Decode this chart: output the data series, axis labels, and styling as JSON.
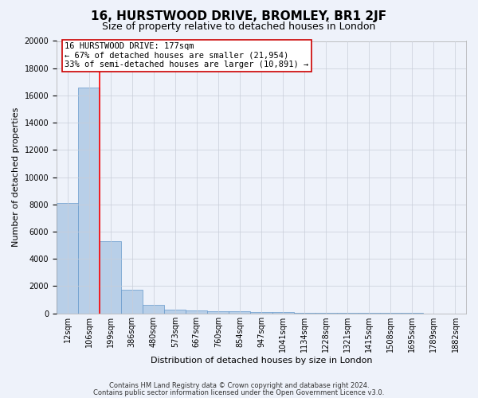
{
  "title": "16, HURSTWOOD DRIVE, BROMLEY, BR1 2JF",
  "subtitle": "Size of property relative to detached houses in London",
  "xlabel": "Distribution of detached houses by size in London",
  "ylabel": "Number of detached properties",
  "bar_values": [
    8100,
    16600,
    5300,
    1750,
    650,
    300,
    200,
    180,
    170,
    100,
    80,
    60,
    40,
    30,
    20,
    15,
    10,
    8,
    5
  ],
  "bar_labels": [
    "12sqm",
    "106sqm",
    "199sqm",
    "386sqm",
    "480sqm",
    "573sqm",
    "667sqm",
    "760sqm",
    "854sqm",
    "947sqm",
    "1041sqm",
    "1134sqm",
    "1228sqm",
    "1321sqm",
    "1415sqm",
    "1508sqm",
    "1695sqm",
    "1789sqm",
    "1882sqm"
  ],
  "bar_color": "#b8cfe8",
  "bar_edgecolor": "#6699cc",
  "ylim": [
    0,
    20000
  ],
  "yticks": [
    0,
    2000,
    4000,
    6000,
    8000,
    10000,
    12000,
    14000,
    16000,
    18000,
    20000
  ],
  "red_line_index": 1.5,
  "annotation_line1": "16 HURSTWOOD DRIVE: 177sqm",
  "annotation_line2": "← 67% of detached houses are smaller (21,954)",
  "annotation_line3": "33% of semi-detached houses are larger (10,891) →",
  "annotation_box_color": "#ffffff",
  "annotation_box_edgecolor": "#cc0000",
  "footer_line1": "Contains HM Land Registry data © Crown copyright and database right 2024.",
  "footer_line2": "Contains public sector information licensed under the Open Government Licence v3.0.",
  "background_color": "#eef2fa",
  "grid_color": "#c8cdd8",
  "title_fontsize": 11,
  "subtitle_fontsize": 9,
  "axis_label_fontsize": 8,
  "tick_fontsize": 7,
  "annotation_fontsize": 7.5,
  "footer_fontsize": 6
}
